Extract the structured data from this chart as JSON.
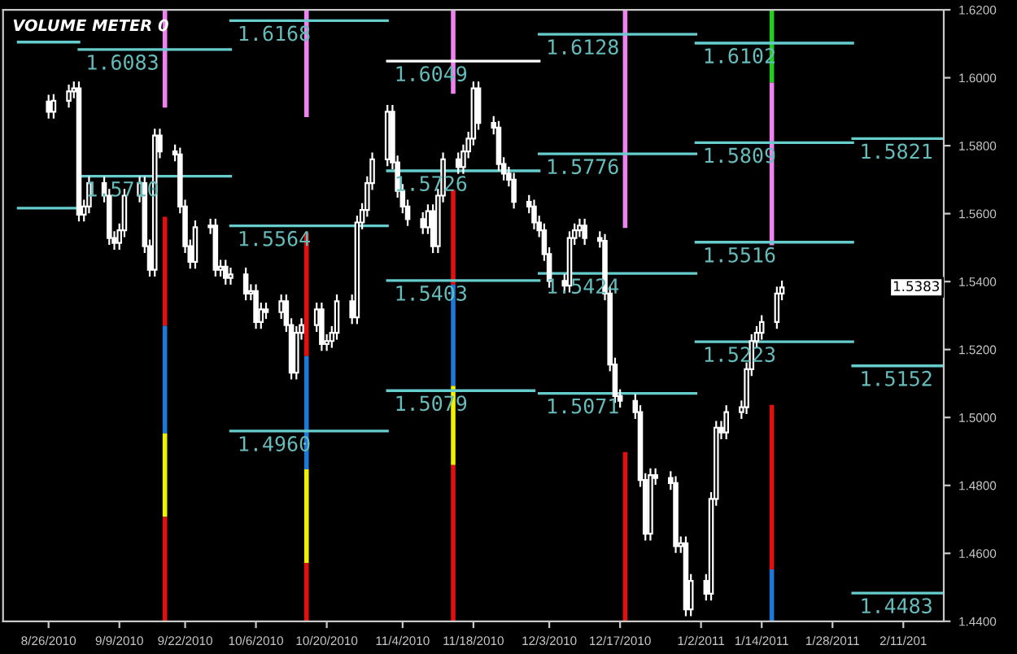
{
  "chart_data": {
    "type": "candlestick",
    "title": "VOLUME METER 0",
    "x": [
      "2010-08-26",
      "2010-08-27",
      "2010-08-30",
      "2010-08-31",
      "2010-09-01",
      "2010-09-02",
      "2010-09-03",
      "2010-09-06",
      "2010-09-07",
      "2010-09-08",
      "2010-09-09",
      "2010-09-10",
      "2010-09-13",
      "2010-09-14",
      "2010-09-15",
      "2010-09-16",
      "2010-09-17",
      "2010-09-20",
      "2010-09-21",
      "2010-09-22",
      "2010-09-23",
      "2010-09-24",
      "2010-09-27",
      "2010-09-28",
      "2010-09-29",
      "2010-09-30",
      "2010-10-01",
      "2010-10-04",
      "2010-10-05",
      "2010-10-06",
      "2010-10-07",
      "2010-10-08",
      "2010-10-11",
      "2010-10-12",
      "2010-10-13",
      "2010-10-14",
      "2010-10-15",
      "2010-10-18",
      "2010-10-19",
      "2010-10-20",
      "2010-10-21",
      "2010-10-22",
      "2010-10-25",
      "2010-10-26",
      "2010-10-27",
      "2010-10-28",
      "2010-10-29",
      "2010-11-01",
      "2010-11-02",
      "2010-11-03",
      "2010-11-04",
      "2010-11-05",
      "2010-11-08",
      "2010-11-09",
      "2010-11-10",
      "2010-11-11",
      "2010-11-12",
      "2010-11-15",
      "2010-11-16",
      "2010-11-17",
      "2010-11-18",
      "2010-11-19",
      "2010-11-22",
      "2010-11-23",
      "2010-11-24",
      "2010-11-25",
      "2010-11-26",
      "2010-11-29",
      "2010-11-30",
      "2010-12-01",
      "2010-12-02",
      "2010-12-03",
      "2010-12-06",
      "2010-12-07",
      "2010-12-08",
      "2010-12-09",
      "2010-12-10",
      "2010-12-13",
      "2010-12-14",
      "2010-12-15",
      "2010-12-16",
      "2010-12-17",
      "2010-12-20",
      "2010-12-21",
      "2010-12-22",
      "2010-12-23",
      "2010-12-24",
      "2010-12-27",
      "2010-12-28",
      "2010-12-29",
      "2010-12-30",
      "2010-12-31",
      "2011-01-03",
      "2011-01-04",
      "2011-01-05",
      "2011-01-06",
      "2011-01-07",
      "2011-01-10",
      "2011-01-11",
      "2011-01-12",
      "2011-01-13",
      "2011-01-14",
      "2011-01-17",
      "2011-01-18"
    ],
    "ohlc": [
      [
        1.593,
        1.595,
        1.588,
        1.59
      ],
      [
        1.59,
        1.5952,
        1.588,
        1.5932
      ],
      [
        1.5932,
        1.598,
        1.5912,
        1.596
      ],
      [
        1.596,
        1.5989,
        1.594,
        1.5969
      ],
      [
        1.5969,
        1.5989,
        1.5577,
        1.5597
      ],
      [
        1.5597,
        1.5641,
        1.5577,
        1.5621
      ],
      [
        1.5621,
        1.571,
        1.5601,
        1.569
      ],
      [
        1.569,
        1.571,
        1.5633,
        1.5653
      ],
      [
        1.5653,
        1.5673,
        1.5508,
        1.5528
      ],
      [
        1.5528,
        1.5548,
        1.5494,
        1.5514
      ],
      [
        1.5514,
        1.5571,
        1.5494,
        1.5551
      ],
      [
        1.5551,
        1.5673,
        1.5531,
        1.5653
      ],
      [
        1.5653,
        1.571,
        1.5633,
        1.569
      ],
      [
        1.569,
        1.571,
        1.5484,
        1.5504
      ],
      [
        1.5504,
        1.5524,
        1.5415,
        1.5435
      ],
      [
        1.5435,
        1.585,
        1.5415,
        1.583
      ],
      [
        1.583,
        1.585,
        1.5763,
        1.5783
      ],
      [
        1.5783,
        1.5803,
        1.5754,
        1.5774
      ],
      [
        1.5774,
        1.5794,
        1.5601,
        1.5621
      ],
      [
        1.5621,
        1.5641,
        1.5484,
        1.5504
      ],
      [
        1.5504,
        1.5524,
        1.5438,
        1.5458
      ],
      [
        1.5458,
        1.558,
        1.5438,
        1.556
      ],
      [
        1.556,
        1.5585,
        1.554,
        1.5565
      ],
      [
        1.5565,
        1.5585,
        1.5415,
        1.5435
      ],
      [
        1.5435,
        1.5464,
        1.5415,
        1.5444
      ],
      [
        1.5444,
        1.5464,
        1.5391,
        1.5411
      ],
      [
        1.5411,
        1.5441,
        1.5391,
        1.5421
      ],
      [
        1.5421,
        1.5441,
        1.5345,
        1.5365
      ],
      [
        1.5365,
        1.5392,
        1.5345,
        1.5372
      ],
      [
        1.5372,
        1.5392,
        1.5261,
        1.5281
      ],
      [
        1.5281,
        1.5338,
        1.5261,
        1.5318
      ],
      [
        1.5318,
        1.5338,
        1.529,
        1.531
      ],
      [
        1.531,
        1.5362,
        1.529,
        1.5342
      ],
      [
        1.5342,
        1.5362,
        1.5252,
        1.5272
      ],
      [
        1.5272,
        1.5292,
        1.5112,
        1.5132
      ],
      [
        1.5132,
        1.5269,
        1.5112,
        1.5249
      ],
      [
        1.5249,
        1.5292,
        1.5229,
        1.5272
      ],
      [
        1.5272,
        1.5338,
        1.5252,
        1.5318
      ],
      [
        1.5318,
        1.5338,
        1.5196,
        1.5216
      ],
      [
        1.5216,
        1.5245,
        1.5196,
        1.5225
      ],
      [
        1.5225,
        1.5269,
        1.5205,
        1.5249
      ],
      [
        1.5249,
        1.5362,
        1.5229,
        1.5342
      ],
      [
        1.5342,
        1.5362,
        1.5275,
        1.5295
      ],
      [
        1.5295,
        1.5594,
        1.5275,
        1.5574
      ],
      [
        1.5574,
        1.5631,
        1.5554,
        1.5611
      ],
      [
        1.5611,
        1.571,
        1.5591,
        1.569
      ],
      [
        1.569,
        1.578,
        1.567,
        1.576
      ],
      [
        1.576,
        1.592,
        1.574,
        1.59
      ],
      [
        1.59,
        1.592,
        1.5731,
        1.5751
      ],
      [
        1.5751,
        1.5771,
        1.5647,
        1.5667
      ],
      [
        1.5667,
        1.5687,
        1.5601,
        1.5621
      ],
      [
        1.5621,
        1.5641,
        1.5564,
        1.5584
      ],
      [
        1.5584,
        1.5604,
        1.554,
        1.556
      ],
      [
        1.556,
        1.5627,
        1.554,
        1.5607
      ],
      [
        1.5607,
        1.5627,
        1.5484,
        1.5504
      ],
      [
        1.5504,
        1.5673,
        1.5484,
        1.5653
      ],
      [
        1.5653,
        1.578,
        1.5633,
        1.576
      ],
      [
        1.576,
        1.578,
        1.5717,
        1.5737
      ],
      [
        1.5737,
        1.5803,
        1.5717,
        1.5783
      ],
      [
        1.5783,
        1.5841,
        1.5763,
        1.5821
      ],
      [
        1.5821,
        1.5989,
        1.5801,
        1.5969
      ],
      [
        1.5969,
        1.5989,
        1.5847,
        1.5867
      ],
      [
        1.5867,
        1.5887,
        1.5833,
        1.5853
      ],
      [
        1.5853,
        1.5873,
        1.5726,
        1.5746
      ],
      [
        1.5746,
        1.5766,
        1.5698,
        1.5718
      ],
      [
        1.5718,
        1.5738,
        1.568,
        1.57
      ],
      [
        1.57,
        1.572,
        1.5615,
        1.5635
      ],
      [
        1.5635,
        1.5655,
        1.5601,
        1.5621
      ],
      [
        1.5621,
        1.5641,
        1.5554,
        1.5574
      ],
      [
        1.5574,
        1.5594,
        1.5531,
        1.5551
      ],
      [
        1.5551,
        1.5571,
        1.5461,
        1.5481
      ],
      [
        1.5481,
        1.5501,
        1.5382,
        1.5402
      ],
      [
        1.5402,
        1.5422,
        1.5368,
        1.5388
      ],
      [
        1.5388,
        1.5548,
        1.5368,
        1.5528
      ],
      [
        1.5528,
        1.5571,
        1.5508,
        1.5551
      ],
      [
        1.5551,
        1.5585,
        1.5531,
        1.5565
      ],
      [
        1.5565,
        1.5585,
        1.5508,
        1.5528
      ],
      [
        1.5528,
        1.5548,
        1.55,
        1.552
      ],
      [
        1.552,
        1.554,
        1.5345,
        1.5365
      ],
      [
        1.5365,
        1.5385,
        1.5136,
        1.5156
      ],
      [
        1.5156,
        1.5176,
        1.5043,
        1.5063
      ],
      [
        1.5063,
        1.5083,
        1.5029,
        1.5049
      ],
      [
        1.5049,
        1.5069,
        1.4996,
        1.5016
      ],
      [
        1.5016,
        1.5036,
        1.4796,
        1.4816
      ],
      [
        1.4816,
        1.4836,
        1.4638,
        1.4658
      ],
      [
        1.4658,
        1.485,
        1.4638,
        1.483
      ],
      [
        1.483,
        1.485,
        1.4802,
        1.4822
      ],
      [
        1.4822,
        1.4842,
        1.4787,
        1.4807
      ],
      [
        1.4807,
        1.4827,
        1.4601,
        1.4621
      ],
      [
        1.4621,
        1.465,
        1.4601,
        1.463
      ],
      [
        1.463,
        1.465,
        1.4415,
        1.4435
      ],
      [
        1.4435,
        1.4539,
        1.4415,
        1.4519
      ],
      [
        1.4519,
        1.4539,
        1.4461,
        1.4481
      ],
      [
        1.4481,
        1.478,
        1.4461,
        1.476
      ],
      [
        1.476,
        1.499,
        1.474,
        1.497
      ],
      [
        1.497,
        1.499,
        1.4936,
        1.4956
      ],
      [
        1.4956,
        1.5036,
        1.4936,
        1.5016
      ],
      [
        1.5016,
        1.505,
        1.4996,
        1.503
      ],
      [
        1.503,
        1.5162,
        1.501,
        1.5142
      ],
      [
        1.5142,
        1.5245,
        1.5122,
        1.5225
      ],
      [
        1.5225,
        1.5269,
        1.5205,
        1.5249
      ],
      [
        1.5249,
        1.5301,
        1.5229,
        1.5281
      ],
      [
        1.5281,
        1.5385,
        1.5261,
        1.5365
      ],
      [
        1.5365,
        1.5403,
        1.5345,
        1.5383
      ]
    ],
    "series": [
      {
        "type": "bar",
        "x": [
          "2010-09-18",
          "2010-10-16",
          "2010-11-14",
          "2010-12-18",
          "2011-01-16"
        ],
        "base": [
          1.5912,
          1.5884,
          1.5953,
          1.5558,
          1.5986
        ],
        "values": [
          0.0288,
          0.0316,
          0.0247,
          0.0642,
          0.0214
        ],
        "colors": [
          "#ee82ee",
          "#ee82ee",
          "#ee82ee",
          "#ee82ee",
          "#22cc22"
        ]
      },
      {
        "type": "bar",
        "x": [
          "2010-09-18",
          "2010-10-16",
          "2010-11-14",
          "2010-12-18",
          "2011-01-16"
        ],
        "base": [
          1.527,
          1.5181,
          1.5391,
          1.44,
          1.5507
        ],
        "values": [
          0.0321,
          0.0363,
          0.0279,
          0.0498,
          0.0479
        ],
        "colors": [
          "#e01010",
          "#e01010",
          "#e01010",
          "#e01010",
          "#ee82ee"
        ]
      },
      {
        "type": "bar",
        "x": [
          "2010-09-18",
          "2010-10-16",
          "2010-11-14",
          "2011-01-16"
        ],
        "base": [
          1.4953,
          1.4847,
          1.5093,
          1.4553
        ],
        "values": [
          0.0317,
          0.0334,
          0.0298,
          0.0484
        ],
        "colors": [
          "#1e78d8",
          "#1e78d8",
          "#1e78d8",
          "#e01010"
        ]
      },
      {
        "type": "bar",
        "x": [
          "2010-09-18",
          "2010-10-16",
          "2010-11-14",
          "2011-01-16"
        ],
        "base": [
          1.4707,
          1.4572,
          1.486,
          1.44
        ],
        "values": [
          0.0246,
          0.0275,
          0.0233,
          0.0153
        ],
        "colors": [
          "#f0f000",
          "#f0f000",
          "#f0f000",
          "#1e78d8"
        ]
      },
      {
        "type": "bar",
        "x": [
          "2010-09-18",
          "2010-10-16",
          "2010-11-14"
        ],
        "base": [
          1.44,
          1.44,
          1.44
        ],
        "values": [
          0.0307,
          0.0172,
          0.046
        ],
        "colors": [
          "#e01010",
          "#e01010",
          "#e01010"
        ]
      },
      {
        "type": "line",
        "color": "#66cccc",
        "x": [
          "2010-08-20",
          "2010-09-01"
        ],
        "values": [
          1.6105,
          1.6105
        ]
      },
      {
        "type": "line",
        "color": "#66cccc",
        "x": [
          "2010-08-20",
          "2010-09-01"
        ],
        "values": [
          1.5616,
          1.5616
        ]
      },
      {
        "type": "line",
        "color": "#66cccc",
        "x": [
          "2010-09-01",
          "2010-10-01"
        ],
        "values": [
          1.6083,
          1.6083
        ]
      },
      {
        "type": "line",
        "color": "#66cccc",
        "x": [
          "2010-09-01",
          "2010-10-01"
        ],
        "values": [
          1.571,
          1.571
        ]
      },
      {
        "type": "line",
        "color": "#66cccc",
        "x": [
          "2010-10-01",
          "2010-11-01"
        ],
        "values": [
          1.6168,
          1.6168
        ]
      },
      {
        "type": "line",
        "color": "#66cccc",
        "x": [
          "2010-10-01",
          "2010-11-01"
        ],
        "values": [
          1.5564,
          1.5564
        ]
      },
      {
        "type": "line",
        "color": "#66cccc",
        "x": [
          "2010-10-01",
          "2010-11-01"
        ],
        "values": [
          1.496,
          1.496
        ]
      },
      {
        "type": "line",
        "color": "#ffffff",
        "x": [
          "2010-11-01",
          "2010-12-01"
        ],
        "values": [
          1.6049,
          1.6049
        ]
      },
      {
        "type": "line",
        "color": "#66cccc",
        "x": [
          "2010-11-01",
          "2010-12-01"
        ],
        "values": [
          1.5726,
          1.5726
        ]
      },
      {
        "type": "line",
        "color": "#66cccc",
        "x": [
          "2010-11-01",
          "2010-12-01"
        ],
        "values": [
          1.5403,
          1.5403
        ]
      },
      {
        "type": "line",
        "color": "#66cccc",
        "x": [
          "2010-11-01",
          "2010-11-30"
        ],
        "values": [
          1.5079,
          1.5079
        ]
      },
      {
        "type": "line",
        "color": "#66cccc",
        "x": [
          "2010-12-01",
          "2011-01-01"
        ],
        "values": [
          1.6128,
          1.6128
        ]
      },
      {
        "type": "line",
        "color": "#66cccc",
        "x": [
          "2010-12-01",
          "2011-01-01"
        ],
        "values": [
          1.5776,
          1.5776
        ]
      },
      {
        "type": "line",
        "color": "#66cccc",
        "x": [
          "2010-12-01",
          "2011-01-01"
        ],
        "values": [
          1.5424,
          1.5424
        ]
      },
      {
        "type": "line",
        "color": "#66cccc",
        "x": [
          "2010-12-01",
          "2011-01-01"
        ],
        "values": [
          1.5071,
          1.5071
        ]
      },
      {
        "type": "line",
        "color": "#66cccc",
        "x": [
          "2011-01-01",
          "2011-02-01"
        ],
        "values": [
          1.6102,
          1.6102
        ]
      },
      {
        "type": "line",
        "color": "#66cccc",
        "x": [
          "2011-01-01",
          "2011-02-01"
        ],
        "values": [
          1.5809,
          1.5809
        ]
      },
      {
        "type": "line",
        "color": "#66cccc",
        "x": [
          "2011-01-01",
          "2011-02-01"
        ],
        "values": [
          1.5516,
          1.5516
        ]
      },
      {
        "type": "line",
        "color": "#66cccc",
        "x": [
          "2011-01-01",
          "2011-02-01"
        ],
        "values": [
          1.5223,
          1.5223
        ]
      },
      {
        "type": "line",
        "color": "#66cccc",
        "x": [
          "2011-02-01",
          "2011-02-19"
        ],
        "values": [
          1.5821,
          1.5821
        ]
      },
      {
        "type": "line",
        "color": "#66cccc",
        "x": [
          "2011-02-01",
          "2011-02-19"
        ],
        "values": [
          1.5152,
          1.5152
        ]
      },
      {
        "type": "line",
        "color": "#66cccc",
        "x": [
          "2011-02-01",
          "2011-02-19"
        ],
        "values": [
          1.4483,
          1.4483
        ]
      }
    ],
    "annotations": [
      {
        "text": "1.6083",
        "x": "2010-09-01",
        "y": 1.6083
      },
      {
        "text": "1.5710",
        "x": "2010-09-01",
        "y": 1.571
      },
      {
        "text": "1.6168",
        "x": "2010-10-01",
        "y": 1.6168
      },
      {
        "text": "1.5564",
        "x": "2010-10-01",
        "y": 1.5564
      },
      {
        "text": "1.4960",
        "x": "2010-10-01",
        "y": 1.496
      },
      {
        "text": "1.6049",
        "x": "2010-11-01",
        "y": 1.6049
      },
      {
        "text": "1.5726",
        "x": "2010-11-01",
        "y": 1.5726
      },
      {
        "text": "1.5403",
        "x": "2010-11-01",
        "y": 1.5403
      },
      {
        "text": "1.5079",
        "x": "2010-11-01",
        "y": 1.5079
      },
      {
        "text": "1.6128",
        "x": "2010-12-01",
        "y": 1.6128
      },
      {
        "text": "1.5776",
        "x": "2010-12-01",
        "y": 1.5776
      },
      {
        "text": "1.5424",
        "x": "2010-12-01",
        "y": 1.5424
      },
      {
        "text": "1.5071",
        "x": "2010-12-01",
        "y": 1.5071
      },
      {
        "text": "1.6102",
        "x": "2011-01-01",
        "y": 1.6102
      },
      {
        "text": "1.5809",
        "x": "2011-01-01",
        "y": 1.5809
      },
      {
        "text": "1.5516",
        "x": "2011-01-01",
        "y": 1.5516
      },
      {
        "text": "1.5223",
        "x": "2011-01-01",
        "y": 1.5223
      },
      {
        "text": "1.5821",
        "x": "2011-02-01",
        "y": 1.5821
      },
      {
        "text": "1.5152",
        "x": "2011-02-01",
        "y": 1.5152
      },
      {
        "text": "1.4483",
        "x": "2011-02-01",
        "y": 1.4483
      },
      {
        "text": "1.5383",
        "y": 1.5383
      }
    ],
    "xlim": [
      "2010-08-17",
      "2011-02-19"
    ],
    "xticks": [
      {
        "value": "2010-08-26",
        "label": "8/26/2010"
      },
      {
        "value": "2010-09-09",
        "label": "9/9/2010"
      },
      {
        "value": "2010-09-22",
        "label": "9/22/2010"
      },
      {
        "value": "2010-10-06",
        "label": "10/6/2010"
      },
      {
        "value": "2010-10-20",
        "label": "10/20/2010"
      },
      {
        "value": "2010-11-04",
        "label": "11/4/2010"
      },
      {
        "value": "2010-11-18",
        "label": "11/18/2010"
      },
      {
        "value": "2010-12-03",
        "label": "12/3/2010"
      },
      {
        "value": "2010-12-17",
        "label": "12/17/2010"
      },
      {
        "value": "2011-01-02",
        "label": "1/2/2011"
      },
      {
        "value": "2011-01-14",
        "label": "1/14/2011"
      },
      {
        "value": "2011-01-28",
        "label": "1/28/2011"
      },
      {
        "value": "2011-02-11",
        "label": "2/11/201"
      }
    ],
    "ylim": [
      1.44,
      1.62
    ],
    "yticks": [
      {
        "value": 1.44,
        "label": "1.4400"
      },
      {
        "value": 1.46,
        "label": "1.4600"
      },
      {
        "value": 1.48,
        "label": "1.4800"
      },
      {
        "value": 1.5,
        "label": "1.5000"
      },
      {
        "value": 1.52,
        "label": "1.5200"
      },
      {
        "value": 1.54,
        "label": "1.5400"
      },
      {
        "value": 1.56,
        "label": "1.5600"
      },
      {
        "value": 1.58,
        "label": "1.5800"
      },
      {
        "value": 1.6,
        "label": "1.6000"
      },
      {
        "value": 1.62,
        "label": "1.6200"
      }
    ],
    "grid": false,
    "legend": false
  }
}
